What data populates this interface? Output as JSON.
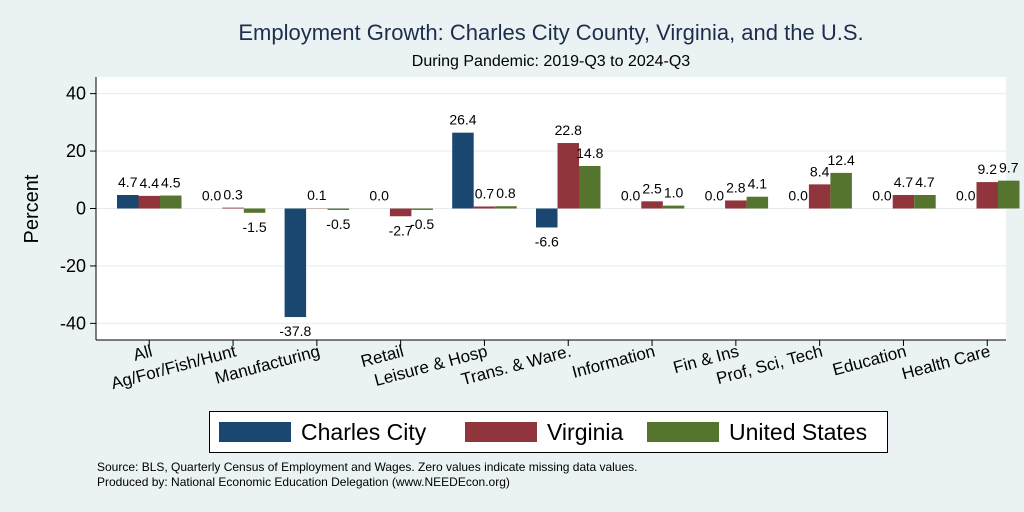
{
  "chart_data": {
    "type": "bar",
    "title": "Employment Growth: Charles City County, Virginia, and the U.S.",
    "subtitle": "During Pandemic: 2019-Q3 to 2024-Q3",
    "ylabel": "Percent",
    "xlabel": "",
    "ylim": [
      -45,
      45
    ],
    "yticks": [
      -40,
      -20,
      0,
      20,
      40
    ],
    "grid": true,
    "legend_position": "bottom",
    "categories": [
      "All",
      "Ag/For/Fish/Hunt",
      "Manufacturing",
      "Retail",
      "Leisure & Hosp",
      "Trans. & Ware.",
      "Information",
      "Fin & Ins",
      "Prof, Sci, Tech",
      "Education",
      "Health Care"
    ],
    "series": [
      {
        "name": "Charles City",
        "color": "#1a476f",
        "values": [
          4.7,
          0.0,
          -37.8,
          0.0,
          26.4,
          -6.6,
          0.0,
          0.0,
          0.0,
          0.0,
          0.0
        ],
        "labels": [
          "4.7",
          "0.0",
          "-37.8",
          "0.0",
          "26.4",
          "-6.6",
          "0.0",
          "0.0",
          "0.0",
          "0.0",
          "0.0"
        ]
      },
      {
        "name": "Virginia",
        "color": "#90353b",
        "values": [
          4.4,
          0.3,
          0.1,
          -2.7,
          0.7,
          22.8,
          2.5,
          2.8,
          8.4,
          4.7,
          9.2
        ],
        "labels": [
          "4.4",
          "0.3",
          "0.1",
          "-2.7",
          "0.7",
          "22.8",
          "2.5",
          "2.8",
          "8.4",
          "4.7",
          "9.2"
        ]
      },
      {
        "name": "United States",
        "color": "#55752f",
        "values": [
          4.5,
          -1.5,
          -0.5,
          -0.5,
          0.8,
          14.8,
          1.0,
          4.1,
          12.4,
          4.7,
          9.7
        ],
        "labels": [
          "4.5",
          "-1.5",
          "-0.5",
          "-0.5",
          "0.8",
          "14.8",
          "1.0",
          "4.1",
          "12.4",
          "4.7",
          "9.7"
        ]
      }
    ]
  },
  "notes": {
    "source": "Source: BLS, Quarterly Census of Employment and Wages. Zero values indicate missing data values.",
    "produced": "Produced by: National Economic Education Delegation (www.NEEDEcon.org)"
  },
  "colors": {
    "background": "#eaf2f3",
    "plot_background": "#ffffff",
    "grid": "#e6ecec"
  }
}
